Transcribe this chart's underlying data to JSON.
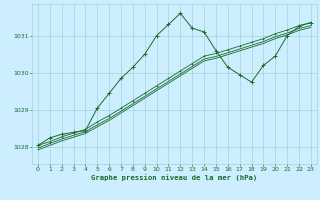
{
  "background_color": "#cceeff",
  "grid_color": "#99cccc",
  "line_color": "#1a6b2a",
  "title": "Graphe pression niveau de la mer (hPa)",
  "title_color": "#1a6b2a",
  "title_bg": "#b0d8c8",
  "xlim": [
    -0.5,
    23.5
  ],
  "ylim": [
    1027.55,
    1031.85
  ],
  "yticks": [
    1028,
    1029,
    1030,
    1031
  ],
  "xticks": [
    0,
    1,
    2,
    3,
    4,
    5,
    6,
    7,
    8,
    9,
    10,
    11,
    12,
    13,
    14,
    15,
    16,
    17,
    18,
    19,
    20,
    21,
    22,
    23
  ],
  "series1_x": [
    0,
    1,
    2,
    3,
    4,
    5,
    6,
    7,
    8,
    9,
    10,
    11,
    12,
    13,
    14,
    15,
    16,
    17,
    18,
    19,
    20,
    21,
    22,
    23
  ],
  "series1_y": [
    1028.05,
    1028.25,
    1028.35,
    1028.4,
    1028.45,
    1029.05,
    1029.45,
    1029.85,
    1030.15,
    1030.5,
    1031.0,
    1031.3,
    1031.6,
    1031.2,
    1031.1,
    1030.6,
    1030.15,
    1029.95,
    1029.75,
    1030.2,
    1030.45,
    1031.0,
    1031.25,
    1031.35
  ],
  "series2_x": [
    0,
    1,
    2,
    3,
    4,
    5,
    6,
    7,
    8,
    9,
    10,
    11,
    12,
    13,
    14,
    15,
    16,
    17,
    18,
    19,
    20,
    21,
    22,
    23
  ],
  "series2_y": [
    1028.05,
    1028.15,
    1028.28,
    1028.38,
    1028.48,
    1028.68,
    1028.85,
    1029.05,
    1029.25,
    1029.45,
    1029.65,
    1029.85,
    1030.05,
    1030.25,
    1030.45,
    1030.52,
    1030.62,
    1030.72,
    1030.82,
    1030.92,
    1031.05,
    1031.15,
    1031.27,
    1031.35
  ],
  "series3_x": [
    0,
    1,
    2,
    3,
    4,
    5,
    6,
    7,
    8,
    9,
    10,
    11,
    12,
    13,
    14,
    15,
    16,
    17,
    18,
    19,
    20,
    21,
    22,
    23
  ],
  "series3_y": [
    1027.98,
    1028.1,
    1028.22,
    1028.32,
    1028.42,
    1028.6,
    1028.77,
    1028.97,
    1029.17,
    1029.37,
    1029.57,
    1029.77,
    1029.97,
    1030.17,
    1030.37,
    1030.44,
    1030.54,
    1030.64,
    1030.74,
    1030.84,
    1030.97,
    1031.07,
    1031.19,
    1031.27
  ],
  "series4_x": [
    0,
    1,
    2,
    3,
    4,
    5,
    6,
    7,
    8,
    9,
    10,
    11,
    12,
    13,
    14,
    15,
    16,
    17,
    18,
    19,
    20,
    21,
    22,
    23
  ],
  "series4_y": [
    1027.93,
    1028.05,
    1028.17,
    1028.27,
    1028.37,
    1028.55,
    1028.72,
    1028.92,
    1029.12,
    1029.32,
    1029.52,
    1029.72,
    1029.92,
    1030.12,
    1030.32,
    1030.39,
    1030.49,
    1030.59,
    1030.69,
    1030.79,
    1030.92,
    1031.02,
    1031.14,
    1031.22
  ]
}
